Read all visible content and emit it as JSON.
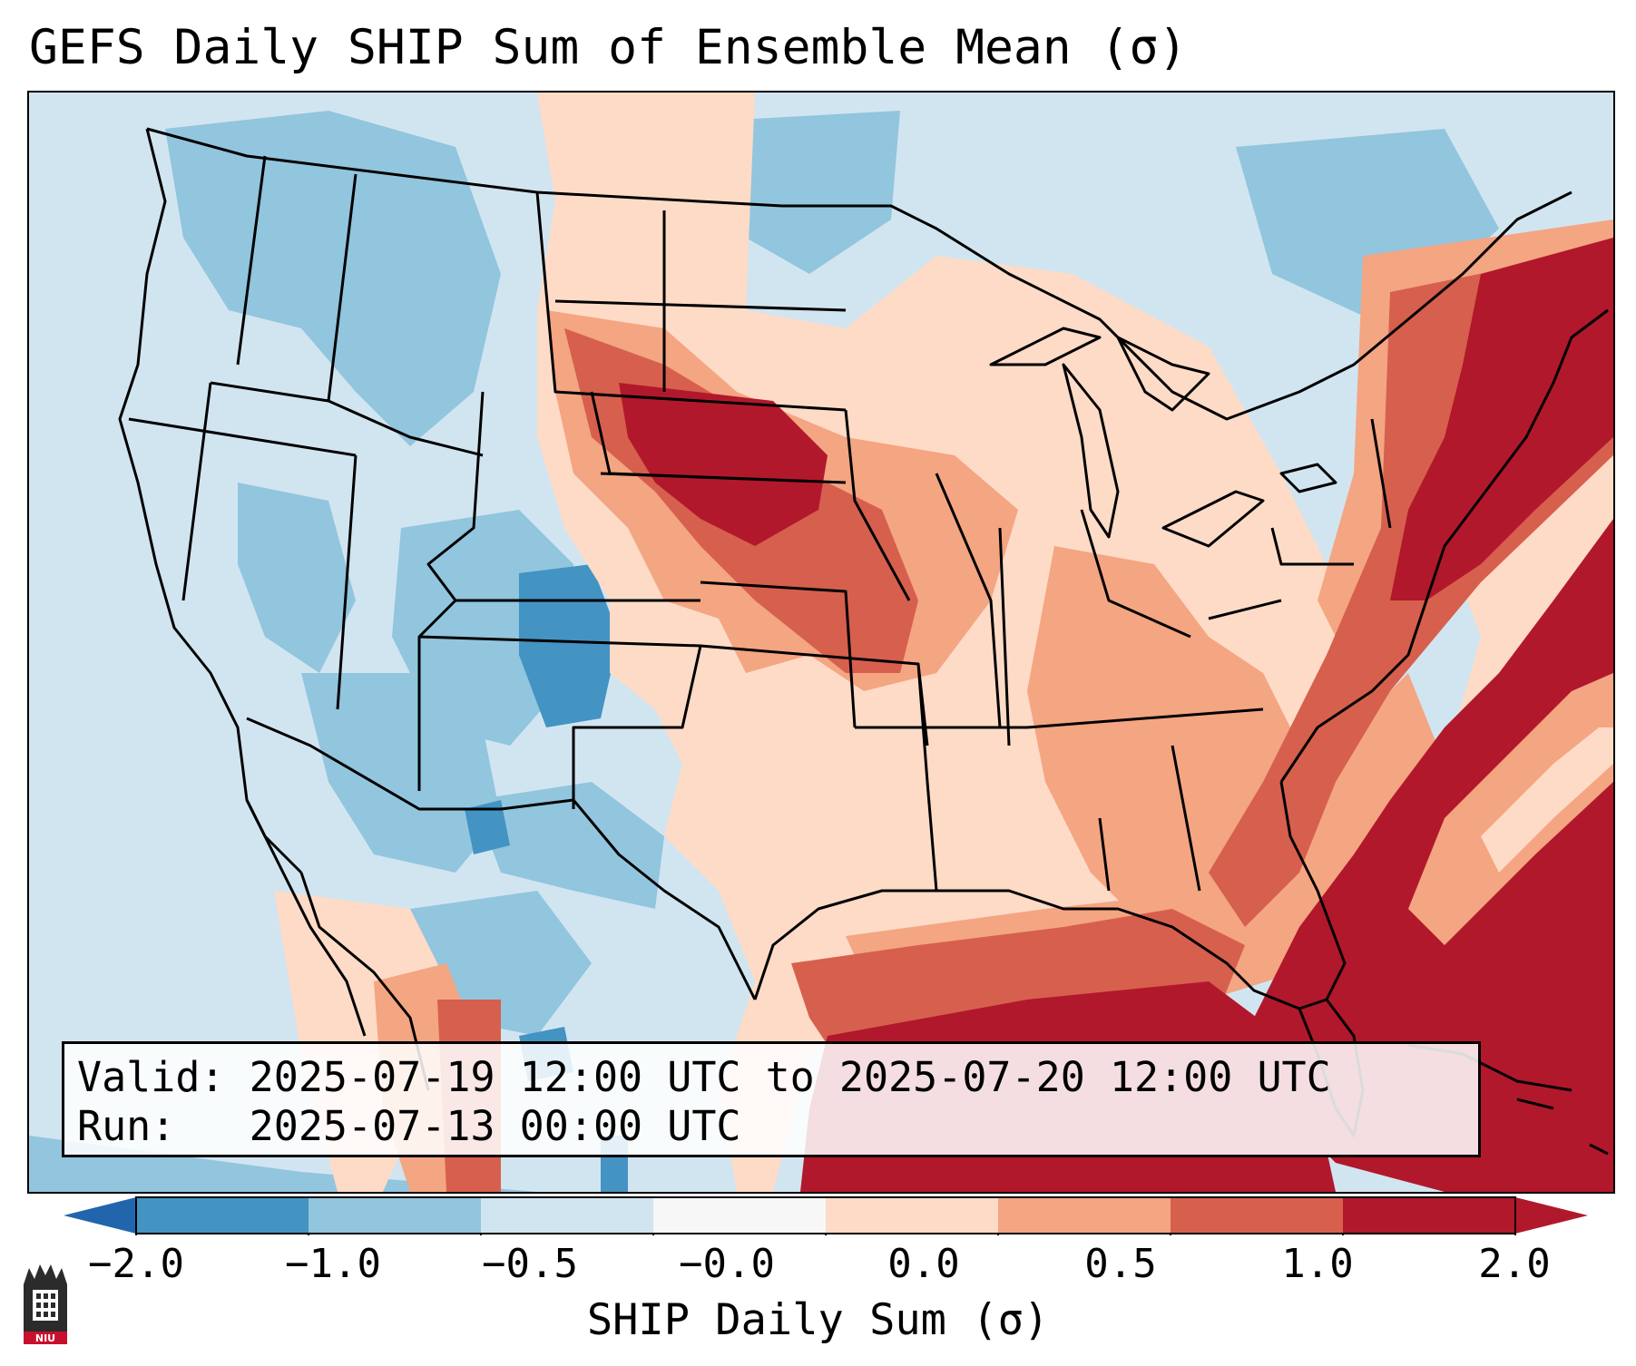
{
  "title": "GEFS Daily SHIP Sum of Ensemble Mean (σ)",
  "valid_label": "Valid:",
  "valid_range": "2025-07-19 12:00 UTC to 2025-07-20 12:00 UTC",
  "run_label": "Run:",
  "run_time": "2025-07-13 00:00 UTC",
  "colorbar": {
    "label": "SHIP Daily Sum (σ)",
    "ticks": [
      "−2.0",
      "−1.0",
      "−0.5",
      "−0.0",
      "0.0",
      "0.5",
      "1.0",
      "2.0"
    ],
    "colors": [
      "#4393c3",
      "#92c5de",
      "#d1e5f0",
      "#f7f7f7",
      "#fddbc7",
      "#f4a582",
      "#d6604d",
      "#b2182b"
    ],
    "under_color": "#2166ac",
    "over_color": "#b2182b"
  },
  "logo": {
    "icon": "niu-logo-icon",
    "text": "NIU"
  }
}
